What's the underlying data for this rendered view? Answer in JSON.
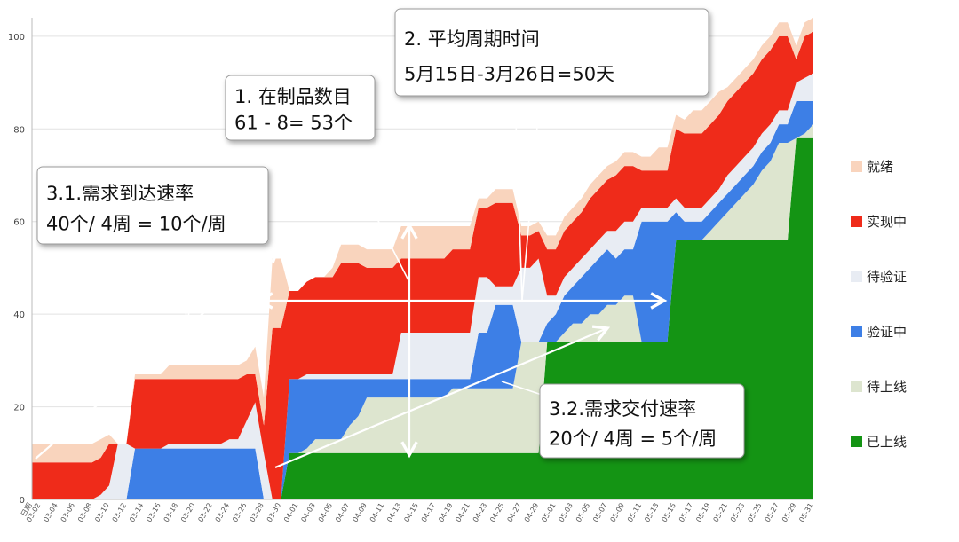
{
  "chart_data": {
    "type": "area",
    "stacked": true,
    "xlabel": "",
    "ylabel": "",
    "ylim": [
      0,
      104
    ],
    "yticks": [
      0,
      20,
      40,
      60,
      80,
      100
    ],
    "grid": true,
    "legend_position": "right",
    "x": [
      "日期",
      "03-02",
      "03-03",
      "03-04",
      "03-05",
      "03-06",
      "03-07",
      "03-08",
      "03-09",
      "03-10",
      "03-11",
      "03-12",
      "03-13",
      "03-14",
      "03-15",
      "03-16",
      "03-17",
      "03-18",
      "03-19",
      "03-20",
      "03-21",
      "03-22",
      "03-23",
      "03-24",
      "03-25",
      "03-26",
      "03-27",
      "03-28",
      "03-29",
      "03-30",
      "03-31",
      "04-01",
      "04-02",
      "04-03",
      "04-04",
      "04-05",
      "04-06",
      "04-07",
      "04-08",
      "04-09",
      "04-10",
      "04-11",
      "04-12",
      "04-13",
      "04-14",
      "04-15",
      "04-16",
      "04-17",
      "04-18",
      "04-19",
      "04-20",
      "04-21",
      "04-22",
      "04-23",
      "04-24",
      "04-25",
      "04-26",
      "04-27",
      "04-28",
      "04-29",
      "04-30",
      "05-01",
      "05-02",
      "05-03",
      "05-04",
      "05-05",
      "05-06",
      "05-07",
      "05-08",
      "05-09",
      "05-10",
      "05-11",
      "05-12",
      "05-13",
      "05-14",
      "05-15",
      "05-16",
      "05-17",
      "05-18",
      "05-19",
      "05-20",
      "05-21",
      "05-22",
      "05-23",
      "05-24",
      "05-25",
      "05-26",
      "05-27",
      "05-28",
      "05-29",
      "05-30",
      "05-31"
    ],
    "x_tick_labels": [
      "日期",
      "03-02",
      "03-04",
      "03-06",
      "03-08",
      "03-10",
      "03-12",
      "03-14",
      "03-16",
      "03-18",
      "03-20",
      "03-22",
      "03-24",
      "03-26",
      "03-28",
      "03-30",
      "04-01",
      "04-03",
      "04-05",
      "04-07",
      "04-09",
      "04-11",
      "04-13",
      "04-15",
      "04-17",
      "04-19",
      "04-21",
      "04-23",
      "04-25",
      "04-27",
      "04-29",
      "05-01",
      "05-03",
      "05-05",
      "05-07",
      "05-09",
      "05-11",
      "05-13",
      "05-15",
      "05-17",
      "05-19",
      "05-21",
      "05-23",
      "05-25",
      "05-27",
      "05-29",
      "05-31"
    ],
    "series": [
      {
        "name": "已上线",
        "color": "#149414",
        "values": [
          0,
          0,
          0,
          0,
          0,
          0,
          0,
          0,
          0,
          0,
          0,
          0,
          0,
          0,
          0,
          0,
          0,
          0,
          0,
          0,
          0,
          0,
          0,
          0,
          0,
          0,
          0,
          0,
          0,
          0,
          10,
          10,
          10,
          10,
          10,
          10,
          10,
          10,
          10,
          10,
          10,
          10,
          10,
          10,
          10,
          10,
          10,
          10,
          10,
          10,
          10,
          10,
          10,
          10,
          10,
          10,
          10,
          10,
          10,
          10,
          34,
          34,
          34,
          34,
          34,
          34,
          34,
          34,
          34,
          34,
          34,
          34,
          34,
          34,
          34,
          56,
          56,
          56,
          56,
          56,
          56,
          56,
          56,
          56,
          56,
          56,
          56,
          56,
          56,
          78,
          78,
          78
        ]
      },
      {
        "name": "待上线",
        "color": "#dde5cf",
        "values": [
          0,
          0,
          0,
          0,
          0,
          0,
          0,
          0,
          0,
          0,
          0,
          0,
          0,
          0,
          0,
          0,
          0,
          0,
          0,
          0,
          0,
          0,
          0,
          0,
          0,
          0,
          0,
          0,
          0,
          0,
          0,
          0,
          1,
          3,
          3,
          3,
          3,
          6,
          8,
          12,
          12,
          12,
          12,
          12,
          12,
          12,
          12,
          12,
          12,
          14,
          14,
          14,
          14,
          14,
          14,
          14,
          14,
          24,
          24,
          24,
          0,
          0,
          2,
          4,
          4,
          6,
          6,
          8,
          8,
          10,
          10,
          0,
          0,
          0,
          0,
          0,
          0,
          0,
          0,
          2,
          4,
          6,
          8,
          10,
          12,
          15,
          17,
          21,
          21,
          0,
          1,
          3
        ]
      },
      {
        "name": "验证中",
        "color": "#3d7fe6",
        "values": [
          0,
          0,
          0,
          0,
          0,
          0,
          0,
          0,
          0,
          0,
          0,
          0,
          11,
          11,
          11,
          11,
          11,
          11,
          11,
          11,
          11,
          11,
          11,
          11,
          11,
          11,
          11,
          0,
          0,
          0,
          16,
          16,
          15,
          13,
          13,
          13,
          13,
          10,
          8,
          4,
          4,
          4,
          4,
          4,
          4,
          4,
          4,
          4,
          4,
          2,
          2,
          2,
          12,
          12,
          18,
          18,
          18,
          0,
          0,
          0,
          4,
          6,
          8,
          8,
          10,
          10,
          12,
          12,
          10,
          10,
          10,
          26,
          26,
          26,
          26,
          6,
          4,
          4,
          4,
          4,
          4,
          4,
          4,
          4,
          4,
          4,
          4,
          4,
          4,
          8,
          7,
          5
        ]
      },
      {
        "name": "待验证",
        "color": "#e8ecf3",
        "values": [
          0,
          0,
          0,
          0,
          0,
          0,
          0,
          0,
          1,
          3,
          12,
          12,
          0,
          0,
          0,
          0,
          1,
          1,
          1,
          1,
          1,
          1,
          1,
          2,
          2,
          6,
          10,
          10,
          0,
          0,
          0,
          0,
          1,
          1,
          1,
          1,
          1,
          1,
          1,
          1,
          1,
          1,
          1,
          10,
          10,
          10,
          10,
          10,
          10,
          10,
          10,
          10,
          12,
          12,
          4,
          4,
          4,
          16,
          16,
          18,
          6,
          4,
          4,
          4,
          4,
          4,
          4,
          4,
          6,
          6,
          6,
          3,
          3,
          3,
          3,
          3,
          3,
          3,
          3,
          3,
          3,
          4,
          4,
          4,
          4,
          4,
          4,
          3,
          3,
          4,
          5,
          6
        ]
      },
      {
        "name": "实现中",
        "color": "#ef2b1a",
        "values": [
          8,
          8,
          8,
          8,
          8,
          8,
          8,
          8,
          8,
          9,
          0,
          0,
          15,
          15,
          15,
          15,
          14,
          14,
          14,
          14,
          14,
          14,
          14,
          13,
          13,
          10,
          6,
          6,
          37,
          37,
          19,
          19,
          20,
          21,
          21,
          21,
          24,
          24,
          24,
          23,
          23,
          23,
          23,
          16,
          16,
          16,
          16,
          16,
          16,
          18,
          18,
          18,
          15,
          15,
          18,
          18,
          18,
          7,
          7,
          6,
          10,
          10,
          10,
          10,
          10,
          11,
          11,
          11,
          12,
          12,
          12,
          8,
          8,
          8,
          8,
          15,
          16,
          16,
          16,
          16,
          16,
          16,
          16,
          16,
          16,
          16,
          16,
          16,
          16,
          5,
          9,
          9
        ]
      },
      {
        "name": "就绪",
        "color": "#f9d4bd",
        "values": [
          4,
          4,
          4,
          4,
          4,
          4,
          4,
          4,
          4,
          2,
          0,
          0,
          1,
          1,
          1,
          1,
          3,
          3,
          3,
          3,
          3,
          3,
          3,
          3,
          3,
          3,
          6,
          6,
          15,
          15,
          0,
          0,
          0,
          0,
          0,
          2,
          4,
          4,
          4,
          4,
          4,
          4,
          4,
          7,
          7,
          7,
          7,
          7,
          7,
          5,
          5,
          5,
          2,
          2,
          3,
          3,
          3,
          2,
          2,
          2,
          3,
          3,
          3,
          3,
          3,
          3,
          3,
          3,
          3,
          3,
          3,
          3,
          3,
          5,
          5,
          3,
          3,
          5,
          5,
          5,
          5,
          3,
          3,
          3,
          3,
          3,
          3,
          3,
          3,
          3,
          3,
          3
        ]
      }
    ],
    "annotations": [
      {
        "id": "wip",
        "lines": [
          "1. 在制品数目",
          "61 - 8= 53个"
        ]
      },
      {
        "id": "cycle",
        "lines": [
          "2. 平均周期时间",
          "5月15日-3月26日=50天"
        ]
      },
      {
        "id": "arrival",
        "lines": [
          "3.1.需求到达速率",
          "40个/ 4周 = 10个/周"
        ]
      },
      {
        "id": "delivery",
        "lines": [
          "3.2.需求交付速率",
          "20个/ 4周 = 5个/周"
        ]
      }
    ]
  }
}
